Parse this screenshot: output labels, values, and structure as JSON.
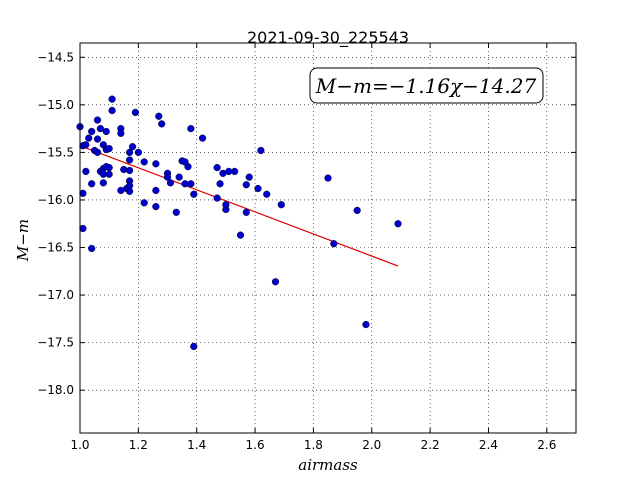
{
  "chart_data": {
    "type": "scatter",
    "title": "2021-09-30_225543",
    "xlabel": "airmass",
    "ylabel": "M−m",
    "xlim": [
      1.0,
      2.7
    ],
    "ylim": [
      -18.45,
      -14.35
    ],
    "y_inverted": true,
    "grid": true,
    "x_ticks": [
      1.0,
      1.2,
      1.4,
      1.6,
      1.8,
      2.0,
      2.2,
      2.4,
      2.6
    ],
    "x_tick_labels": [
      "1.0",
      "1.2",
      "1.4",
      "1.6",
      "1.8",
      "2.0",
      "2.2",
      "2.4",
      "2.6"
    ],
    "y_ticks": [
      -14.5,
      -15.0,
      -15.5,
      -16.0,
      -16.5,
      -17.0,
      -17.5,
      -18.0
    ],
    "y_tick_labels": [
      "−14.5",
      "−15.0",
      "−15.5",
      "−16.0",
      "−16.5",
      "−17.0",
      "−17.5",
      "−18.0"
    ],
    "annotation": "M−m=−1.16χ−14.27",
    "annotation_position": "top-right",
    "point_color": "#0000cc",
    "fit_color": "#dd0000",
    "fit_line": {
      "slope": -1.16,
      "intercept": -14.27,
      "x_range": [
        1.01,
        2.09
      ]
    },
    "points": [
      [
        1.0,
        -15.23
      ],
      [
        1.01,
        -15.43
      ],
      [
        1.01,
        -15.93
      ],
      [
        1.01,
        -16.3
      ],
      [
        1.02,
        -15.42
      ],
      [
        1.02,
        -15.7
      ],
      [
        1.03,
        -15.35
      ],
      [
        1.04,
        -15.83
      ],
      [
        1.04,
        -15.28
      ],
      [
        1.04,
        -16.51
      ],
      [
        1.05,
        -15.48
      ],
      [
        1.06,
        -15.36
      ],
      [
        1.06,
        -15.16
      ],
      [
        1.06,
        -15.5
      ],
      [
        1.07,
        -15.25
      ],
      [
        1.07,
        -15.7
      ],
      [
        1.08,
        -15.42
      ],
      [
        1.08,
        -15.67
      ],
      [
        1.08,
        -15.73
      ],
      [
        1.08,
        -15.82
      ],
      [
        1.09,
        -15.65
      ],
      [
        1.09,
        -15.47
      ],
      [
        1.09,
        -15.28
      ],
      [
        1.1,
        -15.66
      ],
      [
        1.1,
        -15.73
      ],
      [
        1.1,
        -15.46
      ],
      [
        1.11,
        -14.94
      ],
      [
        1.11,
        -15.06
      ],
      [
        1.14,
        -15.25
      ],
      [
        1.14,
        -15.3
      ],
      [
        1.14,
        -15.9
      ],
      [
        1.15,
        -15.68
      ],
      [
        1.16,
        -15.88
      ],
      [
        1.17,
        -15.58
      ],
      [
        1.17,
        -15.69
      ],
      [
        1.17,
        -15.8
      ],
      [
        1.17,
        -15.85
      ],
      [
        1.17,
        -15.91
      ],
      [
        1.17,
        -15.5
      ],
      [
        1.18,
        -15.44
      ],
      [
        1.19,
        -15.08
      ],
      [
        1.2,
        -15.5
      ],
      [
        1.22,
        -15.6
      ],
      [
        1.22,
        -16.03
      ],
      [
        1.26,
        -15.62
      ],
      [
        1.26,
        -15.9
      ],
      [
        1.26,
        -16.07
      ],
      [
        1.27,
        -15.12
      ],
      [
        1.28,
        -15.2
      ],
      [
        1.3,
        -15.72
      ],
      [
        1.3,
        -15.76
      ],
      [
        1.31,
        -15.82
      ],
      [
        1.33,
        -16.13
      ],
      [
        1.34,
        -15.76
      ],
      [
        1.35,
        -15.59
      ],
      [
        1.36,
        -15.6
      ],
      [
        1.36,
        -15.83
      ],
      [
        1.37,
        -15.65
      ],
      [
        1.38,
        -15.25
      ],
      [
        1.38,
        -15.83
      ],
      [
        1.39,
        -15.94
      ],
      [
        1.39,
        -17.54
      ],
      [
        1.42,
        -15.35
      ],
      [
        1.47,
        -15.66
      ],
      [
        1.47,
        -15.98
      ],
      [
        1.48,
        -15.83
      ],
      [
        1.49,
        -15.72
      ],
      [
        1.5,
        -16.1
      ],
      [
        1.5,
        -16.05
      ],
      [
        1.51,
        -15.7
      ],
      [
        1.53,
        -15.7
      ],
      [
        1.55,
        -16.37
      ],
      [
        1.57,
        -15.84
      ],
      [
        1.57,
        -16.13
      ],
      [
        1.58,
        -15.76
      ],
      [
        1.61,
        -15.88
      ],
      [
        1.62,
        -15.48
      ],
      [
        1.64,
        -15.94
      ],
      [
        1.67,
        -16.86
      ],
      [
        1.69,
        -16.05
      ],
      [
        1.85,
        -15.77
      ],
      [
        1.87,
        -16.46
      ],
      [
        1.95,
        -16.11
      ],
      [
        1.98,
        -17.31
      ],
      [
        2.09,
        -16.25
      ]
    ]
  }
}
